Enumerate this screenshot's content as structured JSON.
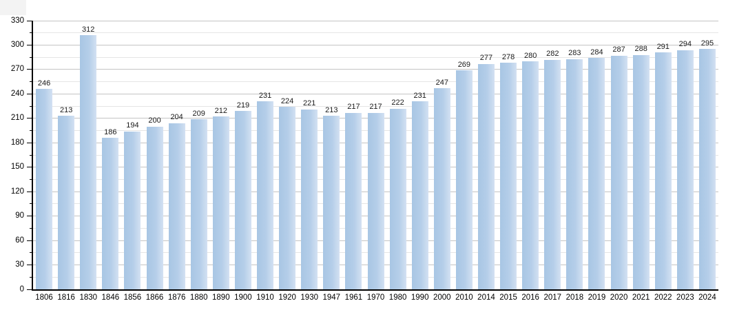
{
  "colors": {
    "bar_fill_left": "#a8c6e4",
    "bar_fill_mid": "#b5cee9",
    "bar_fill_right": "#d3e1f2",
    "major_gridline": "#c4c4c4",
    "minor_gridline": "#e5e5e5",
    "axis": "#000000",
    "value_label": "#191919",
    "background": "#ffffff",
    "corner_patch": "#f3f3f3"
  },
  "chart_data": {
    "type": "bar",
    "title": "",
    "xlabel": "",
    "ylabel": "",
    "categories": [
      "1806",
      "1816",
      "1830",
      "1846",
      "1856",
      "1866",
      "1876",
      "1880",
      "1890",
      "1900",
      "1910",
      "1920",
      "1930",
      "1947",
      "1961",
      "1970",
      "1980",
      "1990",
      "2000",
      "2010",
      "2014",
      "2015",
      "2016",
      "2017",
      "2018",
      "2019",
      "2020",
      "2021",
      "2022",
      "2023",
      "2024"
    ],
    "values": [
      246,
      213,
      312,
      186,
      194,
      200,
      204,
      209,
      212,
      219,
      231,
      224,
      221,
      213,
      217,
      217,
      222,
      231,
      247,
      269,
      277,
      278,
      280,
      282,
      283,
      284,
      287,
      288,
      291,
      294,
      295
    ],
    "ylim": [
      0,
      330
    ],
    "y_major_ticks": [
      0,
      30,
      60,
      90,
      120,
      150,
      180,
      210,
      240,
      270,
      300,
      330
    ],
    "y_minor_step": 15,
    "grid": true,
    "legend_position": "none",
    "bar_value_labels_shown": true
  }
}
